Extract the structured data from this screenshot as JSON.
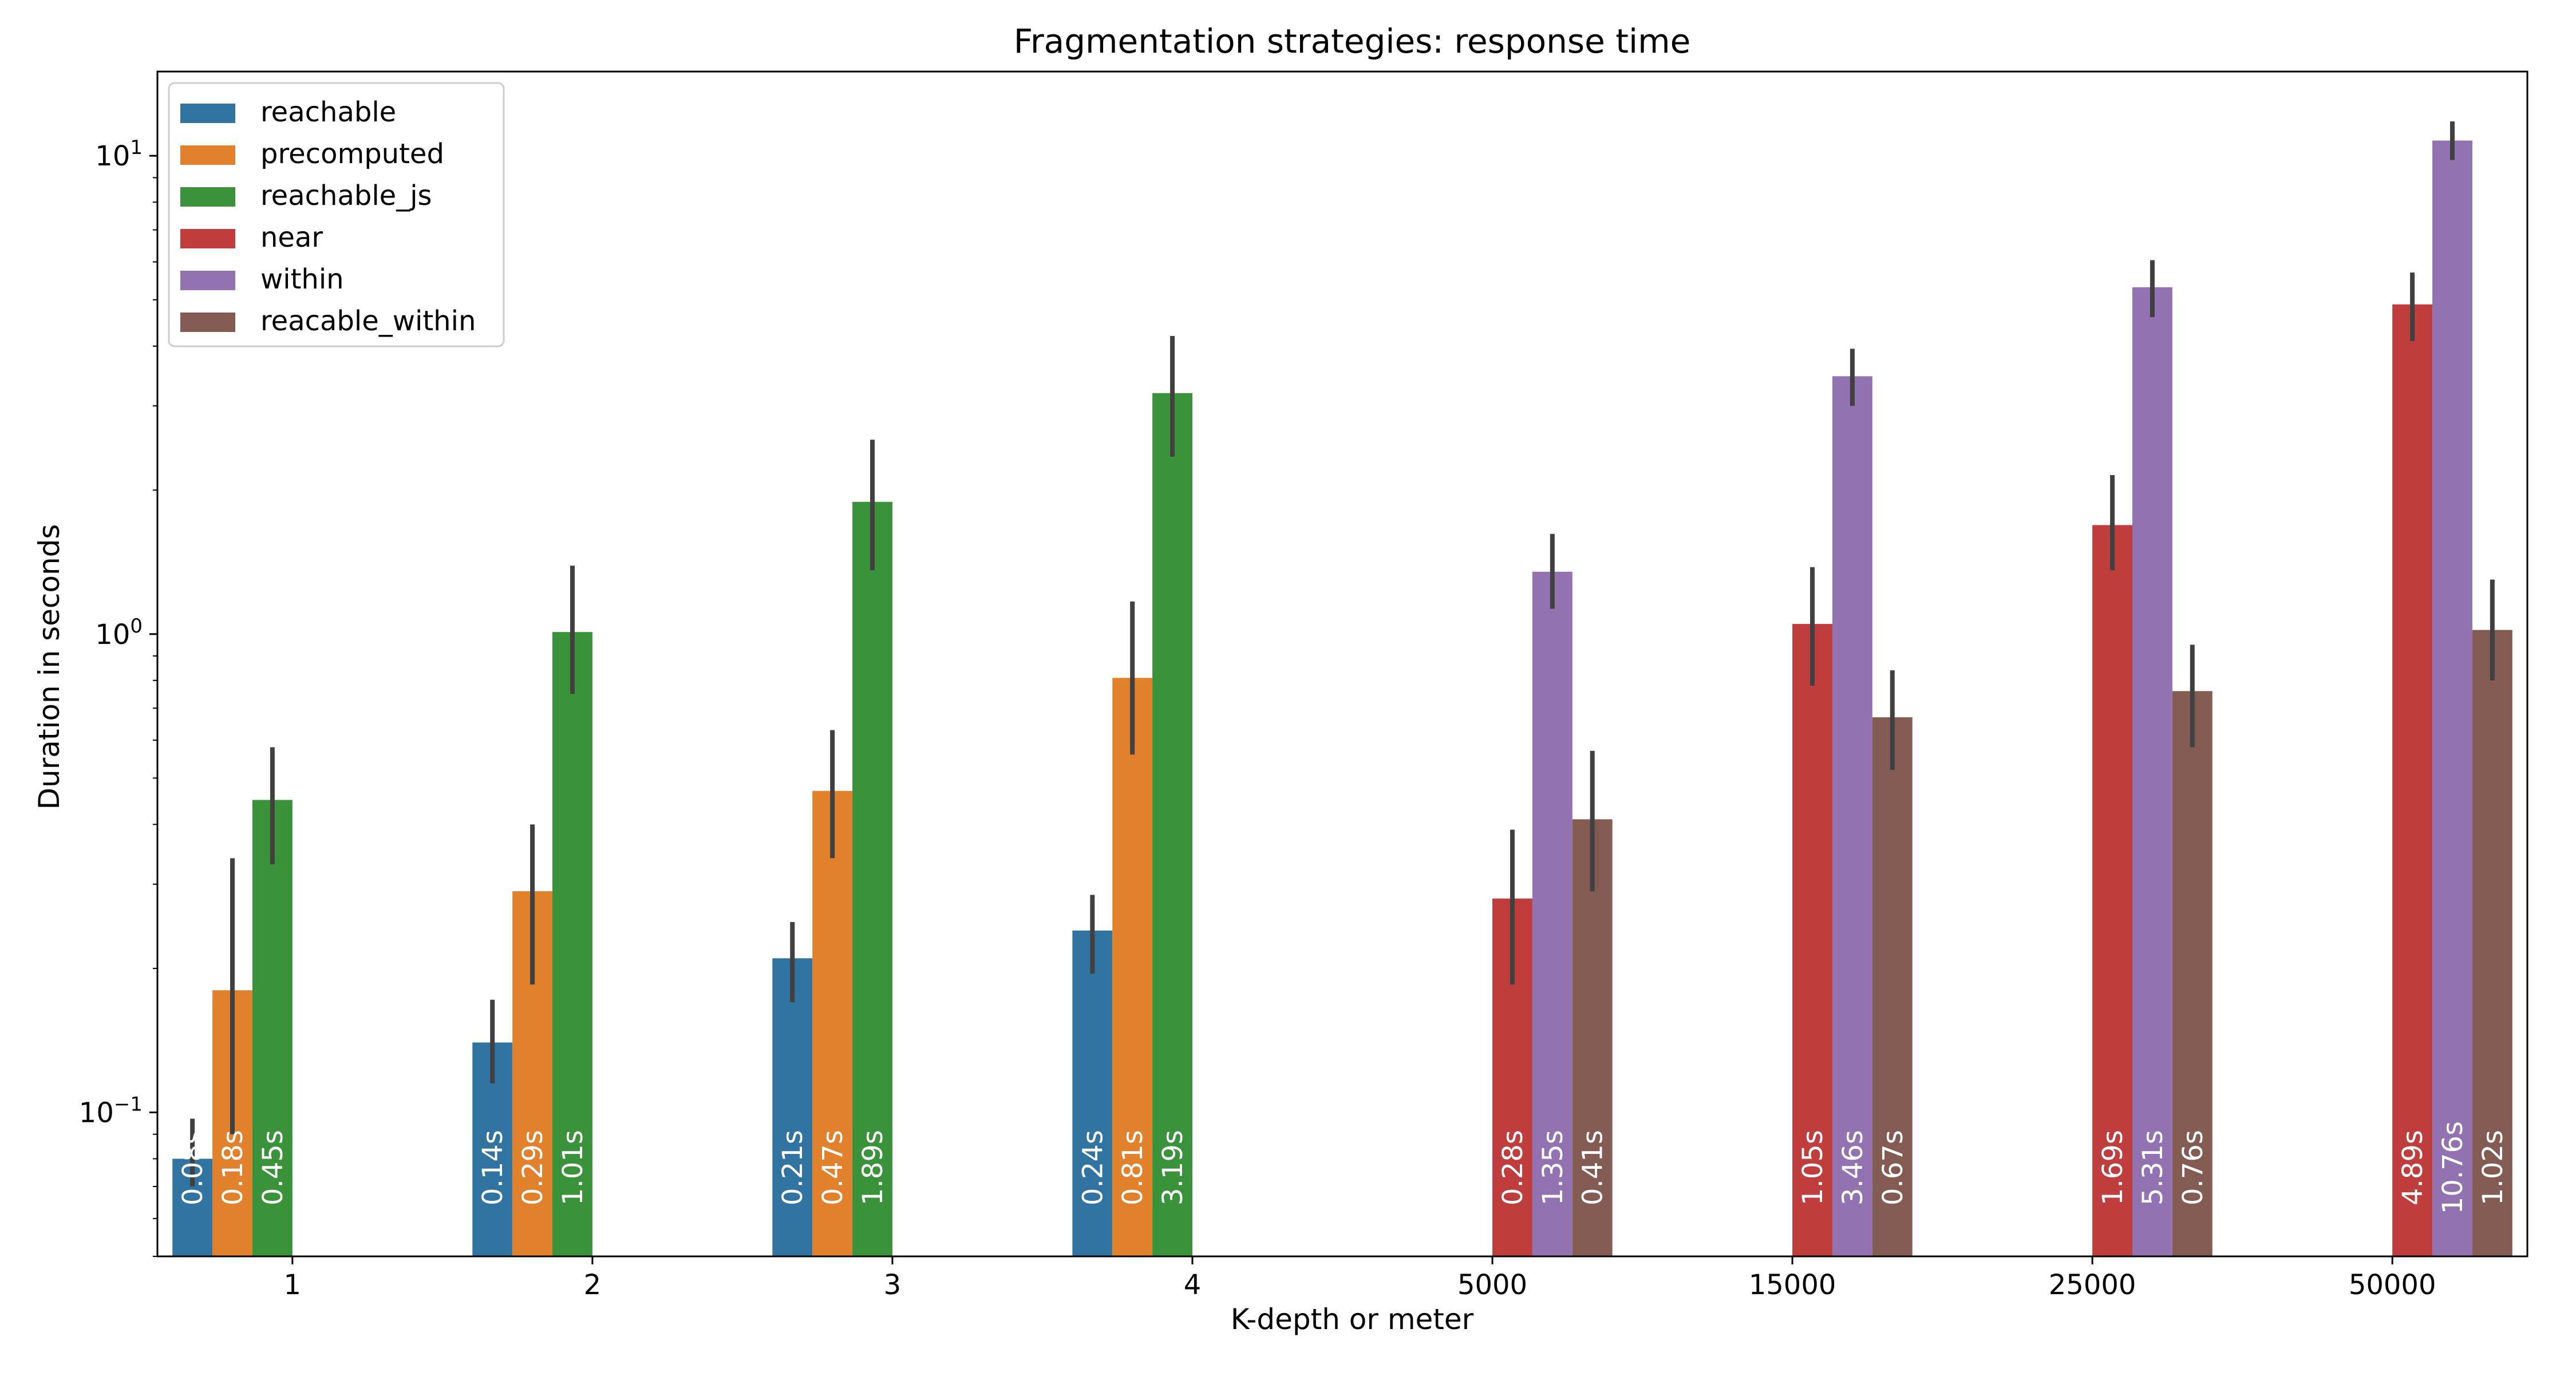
{
  "chart_data": {
    "type": "bar",
    "title": "Fragmentation strategies: response time",
    "xlabel": "K-depth or meter",
    "ylabel": "Duration in seconds",
    "yscale": "log",
    "ylim": [
      0.05,
      15
    ],
    "yticks": [
      {
        "value": 0.1,
        "base": "10",
        "exp": "−1"
      },
      {
        "value": 1,
        "base": "10",
        "exp": "0"
      },
      {
        "value": 10,
        "base": "10",
        "exp": "1"
      }
    ],
    "categories": [
      "1",
      "2",
      "3",
      "4",
      "5000",
      "15000",
      "25000",
      "50000"
    ],
    "grid": false,
    "legend_position": "top-left",
    "series": [
      {
        "name": "reachable",
        "color": "#3274a1",
        "values": [
          0.08,
          0.14,
          0.21,
          0.24,
          null,
          null,
          null,
          null
        ],
        "err_low": [
          0.07,
          0.115,
          0.17,
          0.195,
          null,
          null,
          null,
          null
        ],
        "err_high": [
          0.097,
          0.172,
          0.25,
          0.285,
          null,
          null,
          null,
          null
        ],
        "labels": [
          "0.08s",
          "0.14s",
          "0.21s",
          "0.24s",
          null,
          null,
          null,
          null
        ]
      },
      {
        "name": "precomputed",
        "color": "#e1812c",
        "values": [
          0.18,
          0.29,
          0.47,
          0.81,
          null,
          null,
          null,
          null
        ],
        "err_low": [
          0.09,
          0.185,
          0.34,
          0.56,
          null,
          null,
          null,
          null
        ],
        "err_high": [
          0.34,
          0.4,
          0.63,
          1.17,
          null,
          null,
          null,
          null
        ],
        "labels": [
          "0.18s",
          "0.29s",
          "0.47s",
          "0.81s",
          null,
          null,
          null,
          null
        ]
      },
      {
        "name": "reachable_js",
        "color": "#3a923a",
        "values": [
          0.45,
          1.01,
          1.89,
          3.19,
          null,
          null,
          null,
          null
        ],
        "err_low": [
          0.33,
          0.75,
          1.36,
          2.35,
          null,
          null,
          null,
          null
        ],
        "err_high": [
          0.58,
          1.39,
          2.55,
          4.2,
          null,
          null,
          null,
          null
        ],
        "labels": [
          "0.45s",
          "1.01s",
          "1.89s",
          "3.19s",
          null,
          null,
          null,
          null
        ]
      },
      {
        "name": "near",
        "color": "#c03d3e",
        "values": [
          null,
          null,
          null,
          null,
          0.28,
          1.05,
          1.69,
          4.89
        ],
        "err_low": [
          null,
          null,
          null,
          null,
          0.185,
          0.78,
          1.36,
          4.1
        ],
        "err_high": [
          null,
          null,
          null,
          null,
          0.39,
          1.38,
          2.15,
          5.7
        ],
        "labels": [
          null,
          null,
          null,
          null,
          "0.28s",
          "1.05s",
          "1.69s",
          "4.89s"
        ]
      },
      {
        "name": "within",
        "color": "#9372b2",
        "values": [
          null,
          null,
          null,
          null,
          1.35,
          3.46,
          5.31,
          10.76
        ],
        "err_low": [
          null,
          null,
          null,
          null,
          1.13,
          3.0,
          4.6,
          9.8
        ],
        "err_high": [
          null,
          null,
          null,
          null,
          1.62,
          3.95,
          6.05,
          11.8
        ],
        "labels": [
          null,
          null,
          null,
          null,
          "1.35s",
          "3.46s",
          "5.31s",
          "10.76s"
        ]
      },
      {
        "name": "reacable_within",
        "color": "#845b53",
        "values": [
          null,
          null,
          null,
          null,
          0.41,
          0.67,
          0.76,
          1.02
        ],
        "err_low": [
          null,
          null,
          null,
          null,
          0.29,
          0.52,
          0.58,
          0.8
        ],
        "err_high": [
          null,
          null,
          null,
          null,
          0.57,
          0.84,
          0.95,
          1.3
        ],
        "labels": [
          null,
          null,
          null,
          null,
          "0.41s",
          "0.67s",
          "0.76s",
          "1.02s"
        ]
      }
    ]
  }
}
